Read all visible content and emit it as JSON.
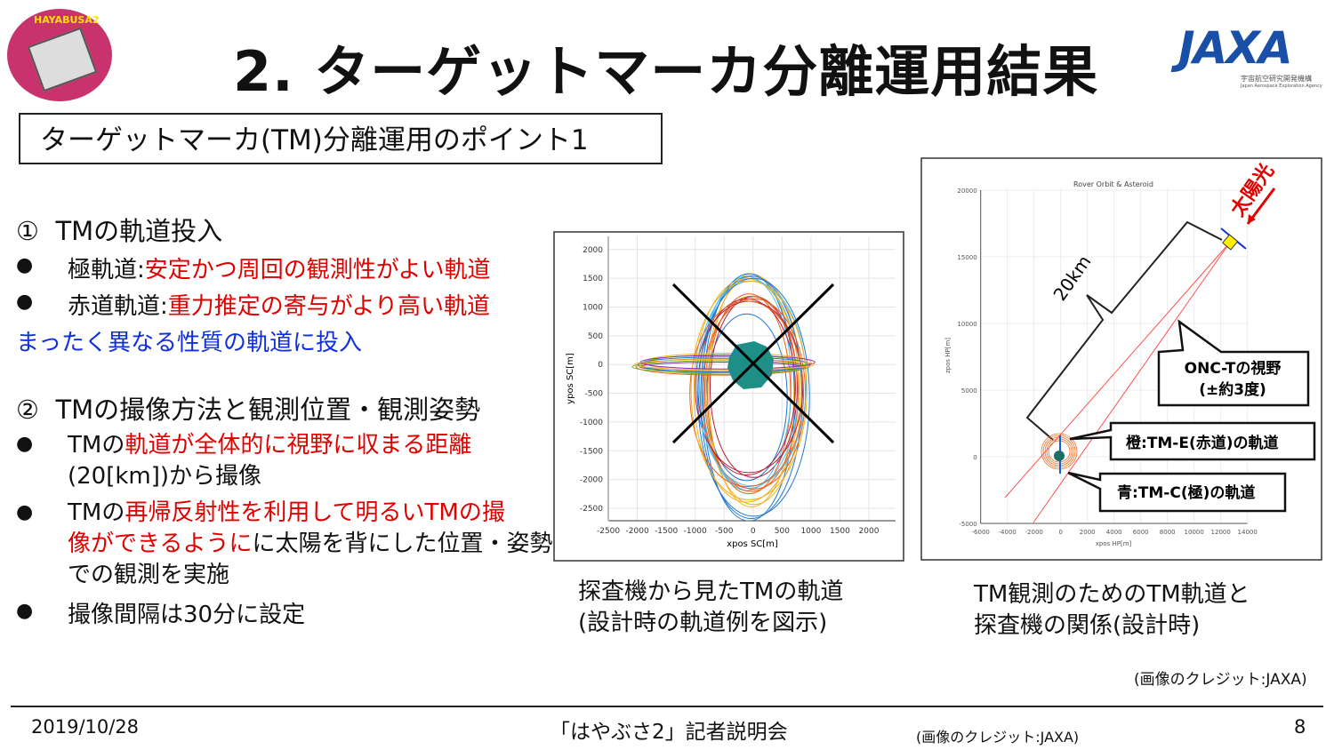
{
  "header": {
    "title": "2. ターゲットマーカ分離運用結果",
    "logo_left_text": "HAYABUSA2",
    "logo_right_text": "JAXA",
    "logo_right_sub": "宇宙航空研究開発機構",
    "logo_right_sub_en": "Japan Aerospace Exploration Agency"
  },
  "point_box": "ターゲットマーカ(TM)分離運用のポイント1",
  "sections": [
    {
      "heading_num": "①",
      "heading": "TMの軌道投入",
      "items": [
        {
          "label": "極軌道:",
          "highlight": "安定かつ周回の観測性がよい軌道"
        },
        {
          "label": "赤道軌道:",
          "highlight": "重力推定の寄与がより高い軌道"
        }
      ],
      "conclusion": "まったく異なる性質の軌道に投入"
    },
    {
      "heading_num": "②",
      "heading": "TMの撮像方法と観測位置・観測姿勢",
      "items": [
        {
          "pre": "TMの",
          "highlight": "軌道が全体的に視野に収まる距離",
          "post": "(20[km])から撮像"
        },
        {
          "pre": "TMの",
          "highlight1": "再帰反射性を利用して明るいTMの撮",
          "highlight2": "像ができるように",
          "post1": "に太陽を背にした位置・姿勢",
          "post2": "での観測を実施"
        },
        {
          "text": "撮像間隔は30分に設定"
        }
      ]
    }
  ],
  "figure1": {
    "caption1": "探査機から見たTMの軌道",
    "caption2": "(設計時の軌道例を図示)"
  },
  "figure2": {
    "caption1": "TM観測のためのTM軌道と",
    "caption2": "探査機の関係(設計時)"
  },
  "credit": "(画像のクレジット:JAXA)",
  "footer": {
    "date": "2019/10/28",
    "event": "「はやぶさ2」記者説明会",
    "credit": "(画像のクレジット:JAXA)",
    "page": "8"
  },
  "chart_data": [
    {
      "type": "line",
      "title": "",
      "xlabel": "xpos SC[m]",
      "ylabel": "ypos SC[m]",
      "xlim": [
        -2700,
        2500
      ],
      "ylim": [
        -2750,
        2250
      ],
      "grid": true,
      "xticks": [
        -2500,
        -2000,
        -1500,
        -1000,
        -500,
        0,
        500,
        1000,
        1500,
        2000
      ],
      "yticks": [
        2000,
        1500,
        1000,
        500,
        0,
        -500,
        -1000,
        -1500,
        -2000,
        -2500
      ],
      "xtick_labels": [
        "-2500",
        "-2000",
        "-1500",
        "-1000",
        "-500",
        "0",
        "500",
        "1000",
        "1500",
        "2000"
      ],
      "ytick_labels": [
        "2000",
        "1500",
        "1000",
        "500",
        "0",
        "-500",
        "-1000",
        "-1500",
        "-2000",
        "-2500"
      ],
      "series": [
        {
          "name": "polar orbits",
          "colors": [
            "#1f77d4",
            "#e8601c",
            "#f0b020",
            "#b0203a",
            "#4fc0f0"
          ],
          "center": [
            -50,
            -450
          ],
          "rx": [
            700,
            1000
          ],
          "ry": [
            1450,
            2150
          ],
          "count": 18
        },
        {
          "name": "equatorial orbits",
          "colors": [
            "#8a2bb0",
            "#6ab020",
            "#f0b020",
            "#e8601c",
            "#1f77d4"
          ],
          "center": [
            -500,
            0
          ],
          "rx": [
            1400,
            1550
          ],
          "ry": [
            80,
            170
          ],
          "count": 8
        }
      ],
      "annotation": "X (crossed out)"
    },
    {
      "type": "line",
      "title": "Rover Orbit & Asteroid",
      "xlabel": "xpos HP[m]",
      "ylabel": "zpos HP[m]",
      "xlim": [
        -6000,
        14000
      ],
      "ylim": [
        -5000,
        20000
      ],
      "grid": true,
      "xticks": [
        -6000,
        -4000,
        -2000,
        0,
        2000,
        4000,
        6000,
        8000,
        10000,
        12000,
        14000
      ],
      "yticks": [
        20000,
        15000,
        10000,
        5000,
        0,
        -5000
      ],
      "xtick_labels": [
        "-6000",
        "-4000",
        "-2000",
        "0",
        "2000",
        "4000",
        "6000",
        "8000",
        "10000",
        "12000",
        "14000"
      ],
      "ytick_labels": [
        "20000",
        "15000",
        "10000",
        "5000",
        "0",
        "-5000"
      ],
      "spacecraft": [
        12700,
        16100
      ],
      "annotations": {
        "distance": "20km",
        "sun": "太陽光",
        "fov1": "ONC-Tの視野",
        "fov2": "(±約3度)",
        "orange": "橙:TM-E(赤道)の軌道",
        "blue": "青:TM-C(極)の軌道"
      },
      "colors": {
        "fov": "#ff5050",
        "orange": "#e8702a",
        "blue": "#1060e0",
        "sun": "#e00000"
      }
    }
  ]
}
